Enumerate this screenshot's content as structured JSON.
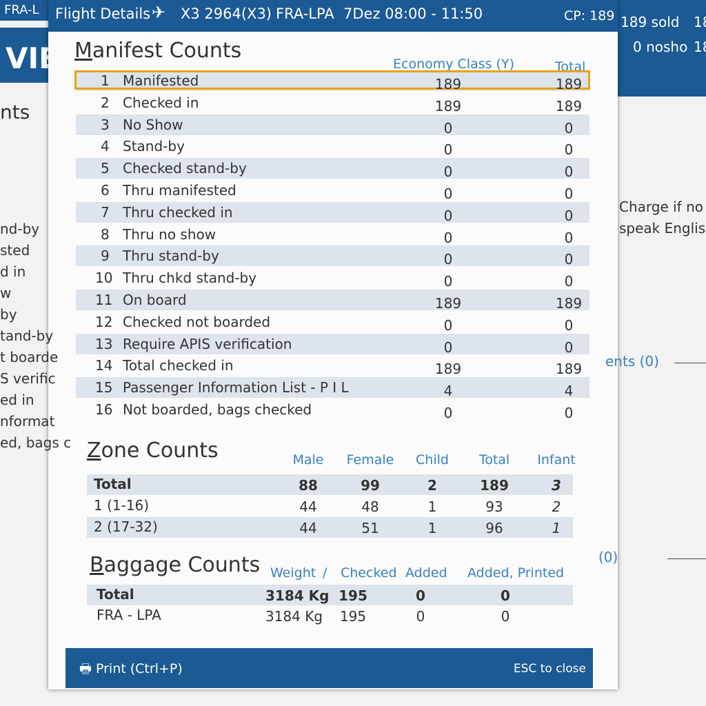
{
  "header": {
    "title": "Flight Details",
    "flight": "X3 2964(X3)",
    "route": "FRA-LPA",
    "date_time": "7Dez 08:00 - 11:50",
    "cp": "CP: 189"
  },
  "background": {
    "left_tab": "FRA-L",
    "left_heading": "VIE",
    "left_sub": "nts",
    "left_items": [
      "nd-by",
      "sted",
      "d in",
      "w",
      "by",
      "tand-by",
      "t boarde",
      "S verific",
      "ed in",
      "nformat",
      "ed, bags c"
    ],
    "right_sold": "189 sold",
    "right_sold_total": "18",
    "right_noshow": "0 nosho",
    "right_noshow_total": "18",
    "right_notes": [
      "Charge if no I",
      "speak English c"
    ],
    "right_links": [
      "ents (0)",
      "(0)"
    ]
  },
  "manifest": {
    "title": "Manifest Counts",
    "columns": [
      "Economy Class (Y)",
      "Total"
    ],
    "rows": [
      [
        1,
        "Manifested",
        189,
        189
      ],
      [
        2,
        "Checked in",
        189,
        189
      ],
      [
        3,
        "No Show",
        0,
        0
      ],
      [
        4,
        "Stand-by",
        0,
        0
      ],
      [
        5,
        "Checked stand-by",
        0,
        0
      ],
      [
        6,
        "Thru manifested",
        0,
        0
      ],
      [
        7,
        "Thru checked in",
        0,
        0
      ],
      [
        8,
        "Thru no show",
        0,
        0
      ],
      [
        9,
        "Thru stand-by",
        0,
        0
      ],
      [
        10,
        "Thru chkd stand-by",
        0,
        0
      ],
      [
        11,
        "On board",
        189,
        189
      ],
      [
        12,
        "Checked not boarded",
        0,
        0
      ],
      [
        13,
        "Require APIS verification",
        0,
        0
      ],
      [
        14,
        "Total checked in",
        189,
        189
      ],
      [
        15,
        "Passenger Information List - P I L",
        4,
        4
      ],
      [
        16,
        "Not boarded, bags checked",
        0,
        0
      ]
    ]
  },
  "zone": {
    "title": "Zone Counts",
    "columns": [
      "Male",
      "Female",
      "Child",
      "Total",
      "Infant"
    ],
    "rows": [
      [
        "Total",
        88,
        99,
        2,
        189,
        3
      ],
      [
        "1 (1-16)",
        44,
        48,
        1,
        93,
        2
      ],
      [
        "2 (17-32)",
        44,
        51,
        1,
        96,
        1
      ]
    ]
  },
  "baggage": {
    "title": "Baggage Counts",
    "columns": [
      "Weight",
      "/",
      "Checked",
      "Added",
      "Added, Printed"
    ],
    "rows": [
      [
        "Total",
        "3184 Kg",
        195,
        0,
        0
      ],
      [
        "FRA - LPA",
        "3184 Kg",
        195,
        0,
        0
      ]
    ]
  },
  "footer": {
    "print": "Print (Ctrl+P)",
    "close": "ESC to close"
  }
}
